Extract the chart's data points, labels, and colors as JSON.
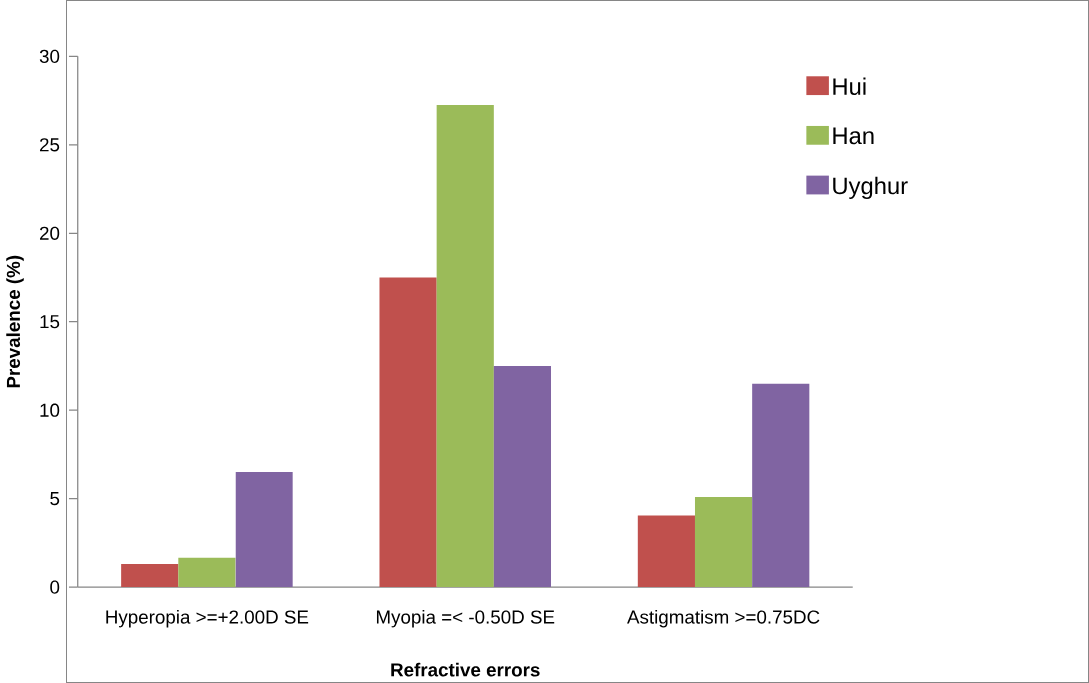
{
  "chart_data": {
    "type": "bar",
    "xlabel": "Refractive errors",
    "ylabel": "Prevalence (%)",
    "categories": [
      "Hyperopia >=+2.00D SE",
      "Myopia =< -0.50D SE",
      "Astigmatism >=0.75DC"
    ],
    "series": [
      {
        "name": "Hui",
        "color": "#c0504d",
        "values": [
          1.3,
          17.5,
          4.05
        ]
      },
      {
        "name": "Han",
        "color": "#9bbb59",
        "values": [
          1.66,
          27.25,
          5.1
        ]
      },
      {
        "name": "Uyghur",
        "color": "#8064a2",
        "values": [
          6.5,
          12.5,
          11.5
        ]
      }
    ],
    "ylim": [
      0,
      30
    ],
    "yticks": [
      0,
      5,
      10,
      15,
      20,
      25,
      30
    ],
    "grid": false,
    "legend": "top right"
  }
}
